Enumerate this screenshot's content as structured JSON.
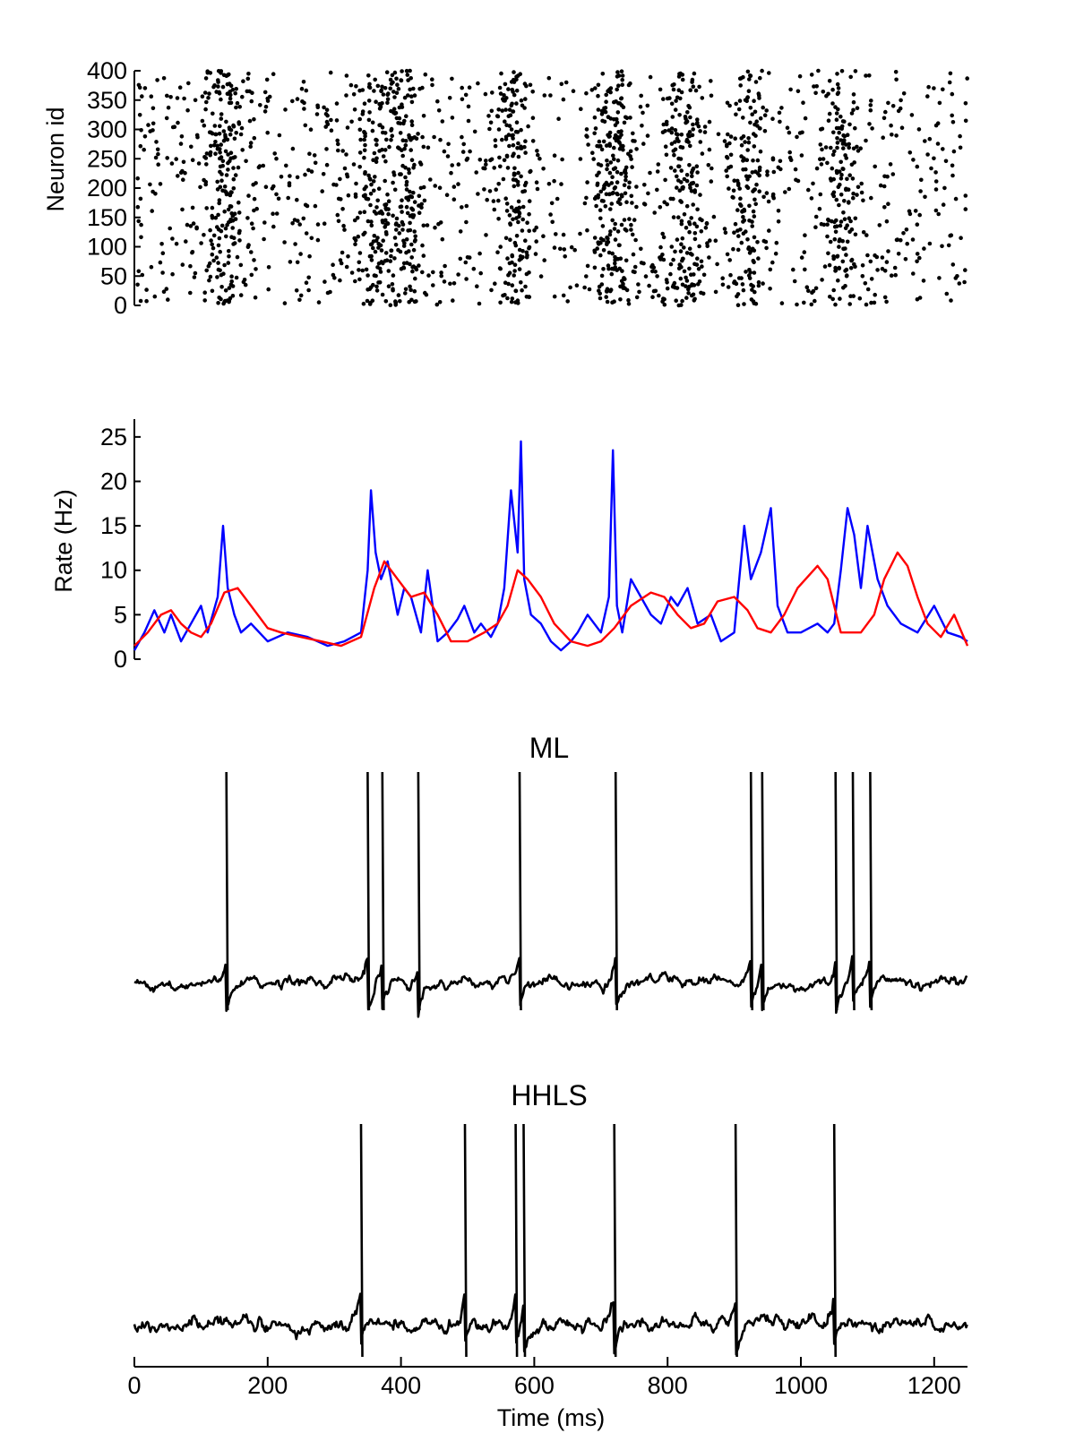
{
  "chart_data": [
    {
      "type": "scatter",
      "ylabel": "Neuron id",
      "xlim": [
        0,
        1250
      ],
      "ylim": [
        0,
        400
      ],
      "yticks": [
        "0",
        "50",
        "100",
        "150",
        "200",
        "250",
        "300",
        "350",
        "400"
      ],
      "marker_color": "#000000",
      "population_bursts_ms": [
        135,
        360,
        410,
        570,
        720,
        825,
        920,
        1060
      ],
      "spike_count_estimate": 2300,
      "burst_width_ms": 16
    },
    {
      "type": "line",
      "ylabel": "Rate (Hz)",
      "xlim": [
        0,
        1250
      ],
      "ylim": [
        0,
        27
      ],
      "yticks": [
        "0",
        "5",
        "10",
        "15",
        "20",
        "25"
      ],
      "series": [
        {
          "color": "#0000ff",
          "x": [
            0,
            15,
            30,
            45,
            55,
            70,
            85,
            100,
            110,
            125,
            133,
            140,
            150,
            160,
            175,
            200,
            230,
            260,
            290,
            315,
            340,
            350,
            355,
            362,
            370,
            380,
            395,
            405,
            415,
            430,
            440,
            455,
            470,
            485,
            495,
            510,
            520,
            535,
            545,
            555,
            565,
            575,
            580,
            585,
            595,
            610,
            625,
            640,
            655,
            665,
            680,
            700,
            712,
            718,
            724,
            732,
            745,
            760,
            775,
            790,
            805,
            815,
            830,
            845,
            865,
            880,
            900,
            915,
            925,
            940,
            955,
            965,
            980,
            1000,
            1025,
            1040,
            1050,
            1060,
            1070,
            1080,
            1090,
            1100,
            1115,
            1130,
            1150,
            1175,
            1200,
            1220,
            1240,
            1250
          ],
          "y": [
            1,
            3,
            5.5,
            3,
            5,
            2,
            4,
            6,
            3,
            7,
            15,
            8,
            5,
            3,
            4,
            2,
            3,
            2.5,
            1.5,
            2,
            3,
            10,
            19,
            12,
            9,
            11,
            5,
            8,
            7,
            3,
            10,
            2,
            3,
            4.5,
            6,
            3,
            4,
            2.5,
            4,
            8,
            19,
            12,
            24.5,
            9,
            5,
            4,
            2,
            1,
            2,
            3,
            5,
            3,
            7,
            23.5,
            6,
            3,
            9,
            7,
            5,
            4,
            7,
            6,
            8,
            4,
            5,
            2,
            3,
            15,
            9,
            12,
            17,
            6,
            3,
            3,
            4,
            3,
            4,
            10,
            17,
            14,
            8,
            15,
            9,
            6,
            4,
            3,
            6,
            3,
            2.5,
            2
          ]
        },
        {
          "color": "#ff0000",
          "x": [
            0,
            20,
            40,
            55,
            70,
            85,
            100,
            115,
            135,
            155,
            175,
            200,
            220,
            250,
            280,
            310,
            340,
            360,
            375,
            395,
            415,
            435,
            455,
            475,
            500,
            525,
            545,
            560,
            575,
            590,
            610,
            630,
            655,
            680,
            700,
            720,
            745,
            775,
            795,
            815,
            835,
            855,
            875,
            900,
            920,
            935,
            955,
            975,
            995,
            1025,
            1040,
            1060,
            1075,
            1090,
            1110,
            1125,
            1145,
            1160,
            1175,
            1190,
            1210,
            1230,
            1250
          ],
          "y": [
            1.5,
            3,
            5,
            5.5,
            4,
            3,
            2.5,
            4,
            7.5,
            8,
            6,
            3.5,
            3,
            2.5,
            2,
            1.5,
            2.5,
            8,
            11,
            9,
            7,
            7.5,
            5,
            2,
            2,
            3,
            4,
            6,
            10,
            9,
            7,
            4,
            2,
            1.5,
            2,
            3.5,
            6,
            7.5,
            7,
            5,
            3.5,
            4,
            6.5,
            7,
            5.5,
            3.5,
            3,
            5,
            8,
            10.5,
            9,
            3,
            3,
            3,
            5,
            9,
            12,
            10.5,
            7,
            4,
            2.5,
            5,
            1.5
          ]
        }
      ]
    },
    {
      "type": "line",
      "title": "ML",
      "xlim": [
        0,
        1250
      ],
      "spike_times_ms": [
        138,
        350,
        372,
        426,
        578,
        722,
        925,
        942,
        1052,
        1078,
        1104
      ]
    },
    {
      "type": "line",
      "title": "HHLS",
      "xlim": [
        0,
        1250
      ],
      "xlabel": "Time (ms)",
      "xticks": [
        "0",
        "200",
        "400",
        "600",
        "800",
        "1000",
        "1200"
      ],
      "spike_times_ms": [
        340,
        496,
        572,
        584,
        720,
        902,
        1050
      ]
    }
  ]
}
